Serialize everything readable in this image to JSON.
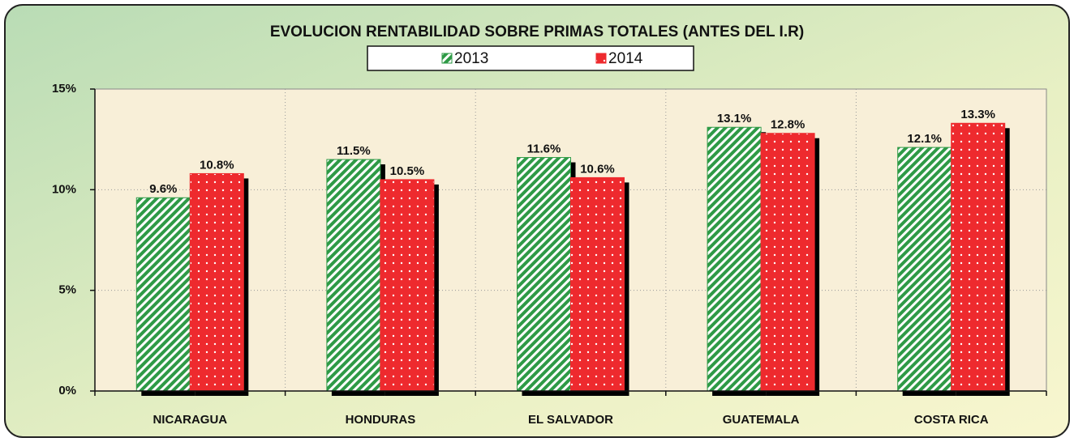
{
  "chart_data": {
    "type": "bar",
    "title": "EVOLUCION RENTABILIDAD SOBRE PRIMAS TOTALES (ANTES DEL I.R)",
    "categories": [
      "NICARAGUA",
      "HONDURAS",
      "EL SALVADOR",
      "GUATEMALA",
      "COSTA RICA"
    ],
    "series": [
      {
        "name": "2013",
        "color": "#2e9a46",
        "values": [
          9.6,
          11.5,
          11.6,
          13.1,
          12.1
        ],
        "value_labels": [
          "9.6%",
          "11.5%",
          "11.6%",
          "13.1%",
          "12.1%"
        ]
      },
      {
        "name": "2014",
        "color": "#ee2a2e",
        "values": [
          10.8,
          10.5,
          10.6,
          12.8,
          13.3
        ],
        "value_labels": [
          "10.8%",
          "10.5%",
          "10.6%",
          "12.8%",
          "13.3%"
        ]
      }
    ],
    "ylim": [
      0,
      15
    ],
    "yticks": [
      {
        "value": 0,
        "label": "0%"
      },
      {
        "value": 5,
        "label": "5%"
      },
      {
        "value": 10,
        "label": "10%"
      },
      {
        "value": 15,
        "label": "15%"
      }
    ],
    "grid": true,
    "legend": "top"
  }
}
